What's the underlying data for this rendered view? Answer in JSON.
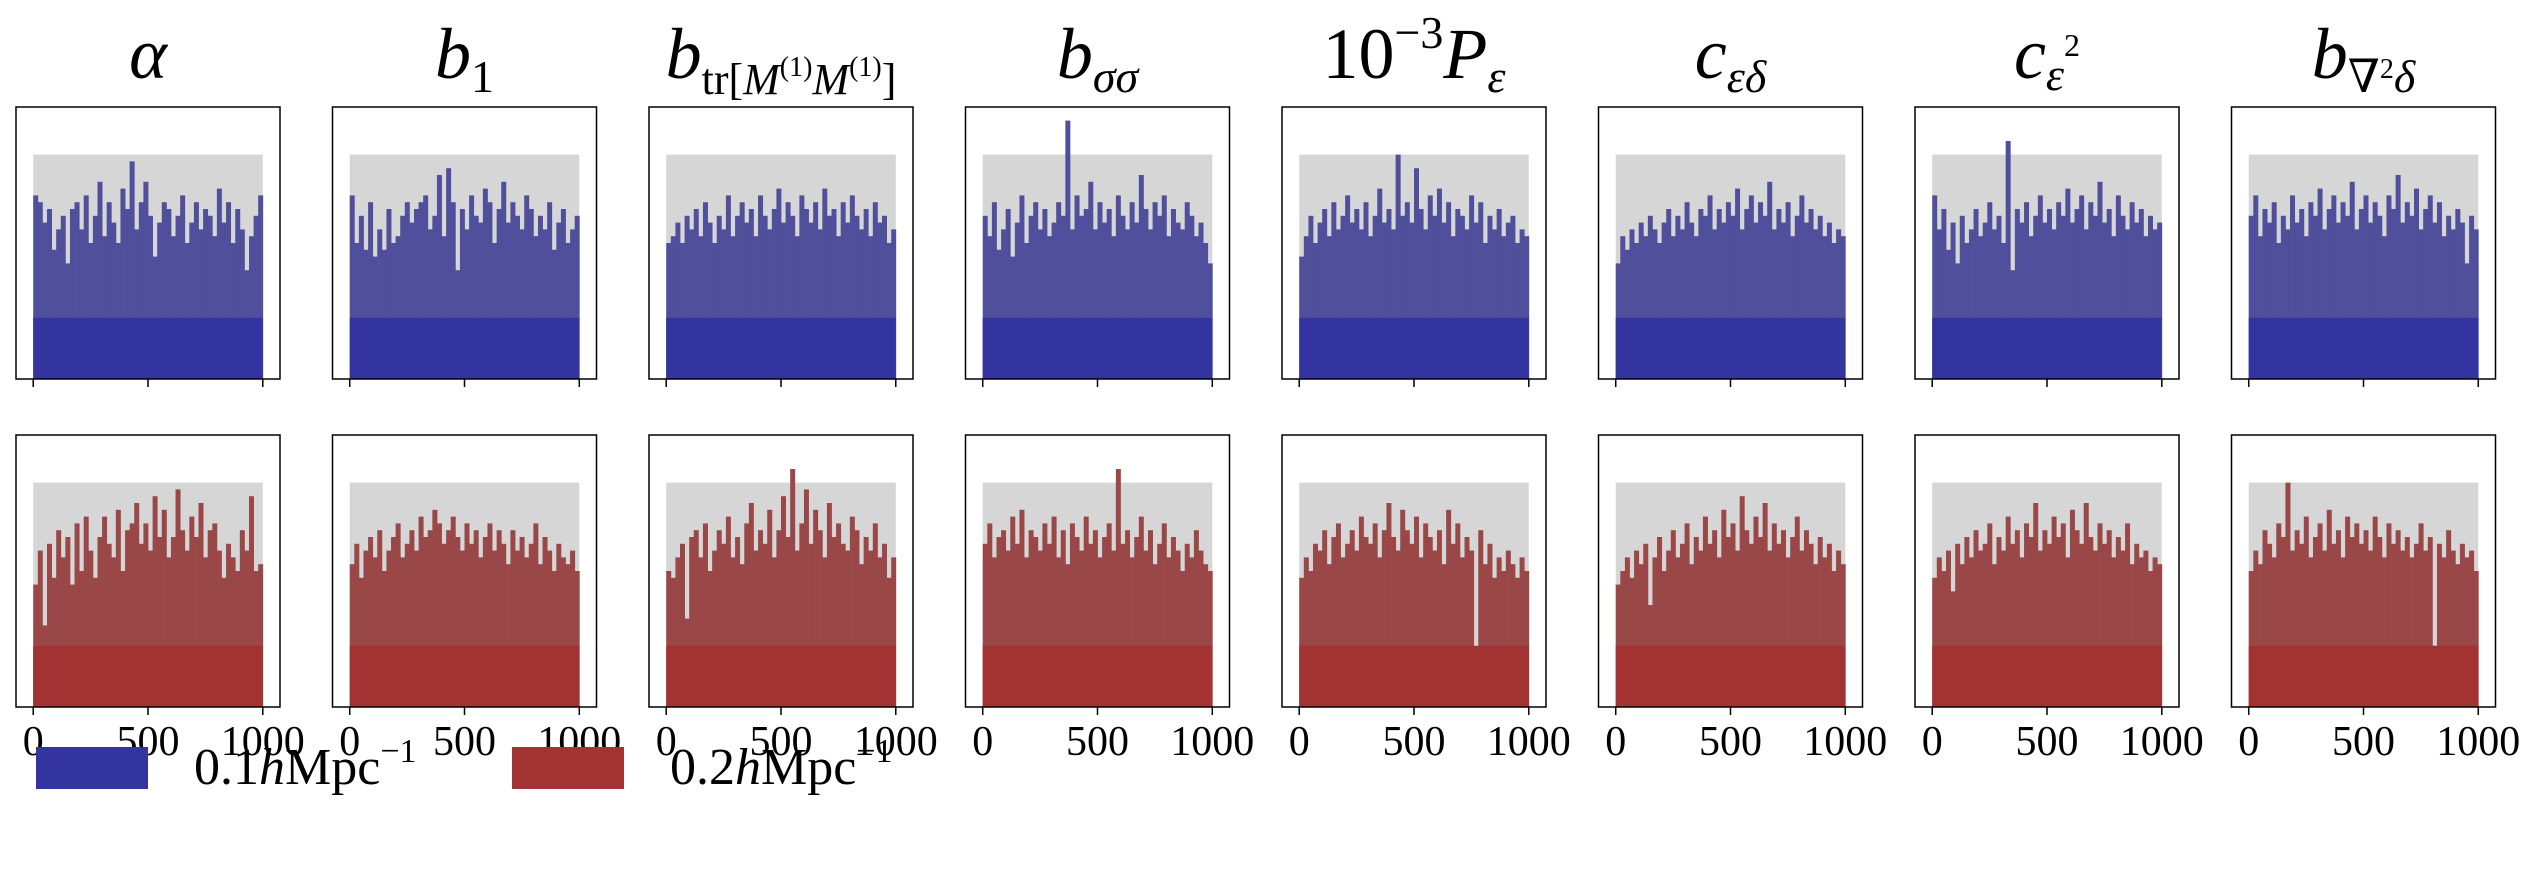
{
  "figure": {
    "type": "rank-histogram-grid",
    "description_free": true
  },
  "chart_data": {
    "type": "bar",
    "x_ticks": [
      "0",
      "500",
      "1000"
    ],
    "x_tick_values": [
      0,
      500,
      1000
    ],
    "xlim": [
      -75,
      1075
    ],
    "ylim": [
      0,
      2.0
    ],
    "bins": 50,
    "bin_width": 20,
    "band": {
      "upper": 1.65,
      "lower": 0.45,
      "color": "#d6d6d6"
    },
    "rows": [
      {
        "key": "k01",
        "legend_label": "0.1hMpc⁻¹",
        "legend_display": {
          "main": "0.1",
          "h": "h",
          "rest": "Mpc",
          "sup": "−1"
        },
        "color": "#3434a0",
        "alpha_color": "#4f4f9c"
      },
      {
        "key": "k02",
        "legend_label": "0.2hMpc⁻¹",
        "legend_display": {
          "main": "0.2",
          "h": "h",
          "rest": "Mpc",
          "sup": "−1"
        },
        "color": "#a33232",
        "alpha_color": "#9a4747"
      }
    ],
    "panels": [
      {
        "param": "alpha",
        "title": {
          "base": "α",
          "sub": "",
          "sup": ""
        },
        "series": [
          [
            1.35,
            1.3,
            1.15,
            1.25,
            0.95,
            1.1,
            1.2,
            0.85,
            1.25,
            1.3,
            1.1,
            1.35,
            1.0,
            1.2,
            1.45,
            1.05,
            1.3,
            1.15,
            1.0,
            1.4,
            1.25,
            1.6,
            1.1,
            1.3,
            1.45,
            1.2,
            0.9,
            1.15,
            1.3,
            1.25,
            1.05,
            1.2,
            1.35,
            1.0,
            1.15,
            1.3,
            1.1,
            1.25,
            1.2,
            1.05,
            1.4,
            1.15,
            1.3,
            1.0,
            1.25,
            1.1,
            0.8,
            1.05,
            1.2,
            1.35
          ],
          [
            0.9,
            1.15,
            0.6,
            1.2,
            0.95,
            1.3,
            1.1,
            1.25,
            0.9,
            1.35,
            1.0,
            1.4,
            1.15,
            0.95,
            1.25,
            1.4,
            1.2,
            1.1,
            1.45,
            1.0,
            1.3,
            1.35,
            1.5,
            1.2,
            1.35,
            1.15,
            1.55,
            1.25,
            1.45,
            1.1,
            1.25,
            1.6,
            1.3,
            1.15,
            1.4,
            1.25,
            1.5,
            1.1,
            1.3,
            1.35,
            1.15,
            0.95,
            1.2,
            1.1,
            1.0,
            1.3,
            1.15,
            1.55,
            1.0,
            1.05
          ]
        ]
      },
      {
        "param": "b1",
        "title": {
          "base": "b",
          "sub": "1",
          "sup": ""
        },
        "series": [
          [
            1.35,
            1.0,
            1.2,
            0.95,
            1.3,
            0.9,
            1.1,
            0.95,
            1.25,
            1.0,
            1.05,
            1.2,
            1.3,
            1.15,
            1.25,
            1.3,
            1.35,
            1.1,
            1.2,
            1.5,
            1.05,
            1.55,
            1.3,
            0.8,
            1.25,
            1.1,
            1.35,
            1.2,
            1.15,
            1.4,
            1.3,
            1.0,
            1.25,
            1.45,
            1.15,
            1.3,
            1.2,
            1.1,
            1.35,
            1.25,
            1.05,
            1.2,
            1.1,
            1.3,
            0.95,
            1.15,
            1.25,
            1.0,
            1.1,
            1.2
          ],
          [
            1.05,
            1.2,
            0.95,
            1.15,
            1.25,
            1.1,
            1.3,
            1.0,
            1.15,
            1.25,
            1.35,
            1.1,
            1.2,
            1.3,
            1.15,
            1.4,
            1.25,
            1.3,
            1.45,
            1.35,
            1.2,
            1.3,
            1.4,
            1.25,
            1.15,
            1.35,
            1.2,
            1.3,
            1.1,
            1.25,
            1.35,
            1.15,
            1.3,
            1.2,
            1.05,
            1.3,
            1.15,
            1.25,
            1.1,
            1.2,
            1.35,
            1.05,
            1.25,
            1.15,
            1.0,
            1.2,
            1.1,
            1.05,
            1.15,
            1.0
          ]
        ]
      },
      {
        "param": "btrMM",
        "title": {
          "base": "b",
          "sub": "tr[M(1)M(1)]",
          "sup": ""
        },
        "series": [
          [
            1.0,
            1.05,
            1.15,
            1.0,
            1.2,
            1.1,
            1.25,
            1.05,
            1.3,
            1.15,
            1.0,
            1.2,
            1.1,
            1.35,
            1.05,
            1.2,
            1.3,
            1.15,
            1.25,
            1.05,
            1.35,
            1.2,
            1.1,
            1.25,
            1.4,
            1.15,
            1.3,
            1.2,
            1.05,
            1.35,
            1.25,
            1.15,
            1.3,
            1.1,
            1.4,
            1.2,
            1.25,
            1.05,
            1.3,
            1.15,
            1.35,
            1.2,
            1.1,
            1.25,
            1.05,
            1.3,
            1.15,
            1.2,
            1.0,
            1.1
          ],
          [
            1.0,
            0.95,
            1.1,
            1.2,
            0.65,
            1.25,
            1.3,
            1.1,
            1.35,
            1.0,
            1.15,
            1.3,
            1.2,
            1.4,
            1.1,
            1.25,
            1.05,
            1.35,
            1.5,
            1.15,
            1.3,
            1.2,
            1.45,
            1.1,
            1.3,
            1.55,
            1.25,
            1.75,
            1.15,
            1.35,
            1.6,
            1.2,
            1.45,
            1.3,
            1.1,
            1.5,
            1.25,
            1.35,
            1.2,
            1.15,
            1.4,
            1.3,
            1.05,
            1.25,
            1.15,
            1.35,
            1.1,
            1.2,
            0.95,
            1.1
          ]
        ]
      },
      {
        "param": "bsigmasigma",
        "title": {
          "base": "b",
          "sub": "σσ",
          "sup": ""
        },
        "series": [
          [
            1.2,
            1.05,
            1.3,
            0.95,
            1.1,
            1.25,
            0.9,
            1.15,
            1.35,
            1.0,
            1.2,
            1.3,
            1.1,
            1.25,
            1.05,
            1.15,
            1.3,
            1.2,
            1.9,
            1.1,
            1.35,
            1.2,
            1.25,
            1.45,
            1.1,
            1.3,
            1.15,
            1.25,
            1.05,
            1.35,
            1.2,
            1.1,
            1.3,
            1.15,
            1.5,
            1.25,
            1.1,
            1.3,
            1.2,
            1.35,
            1.05,
            1.25,
            1.15,
            1.1,
            1.3,
            1.2,
            1.05,
            1.15,
            1.0,
            0.85
          ],
          [
            1.2,
            1.35,
            1.1,
            1.25,
            1.3,
            1.15,
            1.4,
            1.2,
            1.45,
            1.1,
            1.3,
            1.25,
            1.15,
            1.35,
            1.2,
            1.4,
            1.1,
            1.3,
            1.05,
            1.35,
            1.25,
            1.15,
            1.4,
            1.2,
            1.3,
            1.1,
            1.25,
            1.35,
            1.15,
            1.75,
            1.2,
            1.3,
            1.1,
            1.25,
            1.4,
            1.15,
            1.3,
            1.05,
            1.2,
            1.35,
            1.1,
            1.25,
            1.15,
            1.0,
            1.2,
            1.1,
            1.3,
            1.15,
            1.05,
            1.0
          ]
        ]
      },
      {
        "param": "Peps",
        "title": {
          "base": "10",
          "sub": "",
          "sup": "−3",
          "extra": "P",
          "extra_sub": "ε"
        },
        "series": [
          [
            0.9,
            1.05,
            1.2,
            1.0,
            1.15,
            1.25,
            1.05,
            1.3,
            1.1,
            1.2,
            1.35,
            1.15,
            1.25,
            1.1,
            1.3,
            1.05,
            1.2,
            1.4,
            1.15,
            1.25,
            1.1,
            1.65,
            1.2,
            1.3,
            1.15,
            1.55,
            1.25,
            1.1,
            1.35,
            1.2,
            1.4,
            1.15,
            1.3,
            1.05,
            1.25,
            1.2,
            1.1,
            1.35,
            1.15,
            1.3,
            1.0,
            1.2,
            1.1,
            1.25,
            1.05,
            1.15,
            1.2,
            1.0,
            1.1,
            1.05
          ],
          [
            0.95,
            1.1,
            1.0,
            1.2,
            1.15,
            1.3,
            1.05,
            1.25,
            1.35,
            1.1,
            1.2,
            1.3,
            1.15,
            1.4,
            1.25,
            1.2,
            1.35,
            1.1,
            1.3,
            1.5,
            1.25,
            1.15,
            1.45,
            1.3,
            1.2,
            1.4,
            1.1,
            1.35,
            1.25,
            1.15,
            1.3,
            1.05,
            1.45,
            1.2,
            1.35,
            1.1,
            1.25,
            1.15,
            0.3,
            1.3,
            1.05,
            1.2,
            0.95,
            1.1,
            1.0,
            1.15,
            1.05,
            0.95,
            1.1,
            1.0
          ]
        ]
      },
      {
        "param": "cepsdelta",
        "title": {
          "base": "c",
          "sub": "εδ",
          "sup": ""
        },
        "series": [
          [
            0.85,
            1.05,
            0.95,
            1.1,
            1.0,
            1.15,
            1.05,
            1.2,
            1.1,
            1.0,
            1.15,
            1.25,
            1.05,
            1.2,
            1.1,
            1.3,
            1.15,
            1.05,
            1.25,
            1.2,
            1.35,
            1.1,
            1.25,
            1.15,
            1.3,
            1.2,
            1.4,
            1.1,
            1.25,
            1.35,
            1.15,
            1.3,
            1.2,
            1.45,
            1.1,
            1.25,
            1.15,
            1.3,
            1.05,
            1.2,
            1.35,
            1.15,
            1.25,
            1.1,
            1.2,
            1.05,
            1.15,
            1.0,
            1.1,
            1.05
          ],
          [
            0.9,
            1.0,
            1.1,
            0.95,
            1.15,
            1.05,
            1.2,
            0.75,
            1.1,
            1.25,
            1.0,
            1.15,
            1.3,
            1.1,
            1.2,
            1.35,
            1.05,
            1.25,
            1.15,
            1.4,
            1.2,
            1.3,
            1.1,
            1.45,
            1.25,
            1.35,
            1.15,
            1.55,
            1.3,
            1.2,
            1.4,
            1.25,
            1.5,
            1.15,
            1.35,
            1.2,
            1.3,
            1.1,
            1.25,
            1.4,
            1.15,
            1.3,
            1.2,
            1.05,
            1.25,
            1.1,
            1.2,
            1.0,
            1.15,
            1.05
          ]
        ]
      },
      {
        "param": "ceps2",
        "title": {
          "base": "c",
          "sub": "",
          "sup": "2",
          "base_sub": "ε"
        },
        "series": [
          [
            1.35,
            1.1,
            1.25,
            0.95,
            1.15,
            0.85,
            1.2,
            1.0,
            1.1,
            1.25,
            1.05,
            1.15,
            1.3,
            1.1,
            1.2,
            1.0,
            1.75,
            0.8,
            1.25,
            1.15,
            1.3,
            1.05,
            1.2,
            1.35,
            1.15,
            1.25,
            1.1,
            1.3,
            1.2,
            1.4,
            1.15,
            1.25,
            1.35,
            1.1,
            1.3,
            1.2,
            1.45,
            1.15,
            1.25,
            1.05,
            1.35,
            1.2,
            1.1,
            1.3,
            1.15,
            1.25,
            1.05,
            1.2,
            1.1,
            1.15
          ],
          [
            0.95,
            1.1,
            1.0,
            1.15,
            0.85,
            1.2,
            1.05,
            1.25,
            1.1,
            1.3,
            1.15,
            1.2,
            1.35,
            1.05,
            1.25,
            1.15,
            1.4,
            1.2,
            1.3,
            1.1,
            1.35,
            1.25,
            1.5,
            1.15,
            1.3,
            1.2,
            1.4,
            1.25,
            1.35,
            1.1,
            1.45,
            1.3,
            1.2,
            1.5,
            1.25,
            1.15,
            1.35,
            1.2,
            1.3,
            1.1,
            1.25,
            1.15,
            1.35,
            1.05,
            1.2,
            1.1,
            1.15,
            1.0,
            1.1,
            1.05
          ]
        ]
      },
      {
        "param": "bnabla2delta",
        "title": {
          "base": "b",
          "sub": "∇2δ",
          "sup": ""
        },
        "series": [
          [
            1.2,
            1.35,
            1.05,
            1.25,
            1.15,
            1.3,
            1.0,
            1.2,
            1.1,
            1.35,
            1.15,
            1.25,
            1.05,
            1.3,
            1.2,
            1.4,
            1.1,
            1.25,
            1.35,
            1.15,
            1.3,
            1.2,
            1.45,
            1.1,
            1.25,
            1.35,
            1.15,
            1.3,
            1.2,
            1.05,
            1.35,
            1.25,
            1.5,
            1.15,
            1.3,
            1.2,
            1.4,
            1.1,
            1.25,
            1.35,
            1.15,
            1.3,
            1.05,
            1.2,
            1.1,
            1.25,
            1.15,
            0.85,
            1.2,
            1.1
          ],
          [
            1.0,
            1.15,
            1.05,
            1.3,
            1.2,
            1.1,
            1.35,
            1.25,
            1.65,
            1.15,
            1.3,
            1.2,
            1.4,
            1.1,
            1.25,
            1.35,
            1.15,
            1.45,
            1.2,
            1.3,
            1.1,
            1.4,
            1.25,
            1.35,
            1.2,
            1.3,
            1.15,
            1.4,
            1.25,
            1.1,
            1.35,
            1.2,
            1.3,
            1.15,
            1.25,
            1.1,
            1.2,
            1.35,
            1.15,
            1.25,
            0.45,
            1.2,
            1.1,
            1.3,
            1.15,
            1.05,
            1.2,
            1.1,
            1.15,
            1.0
          ]
        ]
      }
    ]
  }
}
